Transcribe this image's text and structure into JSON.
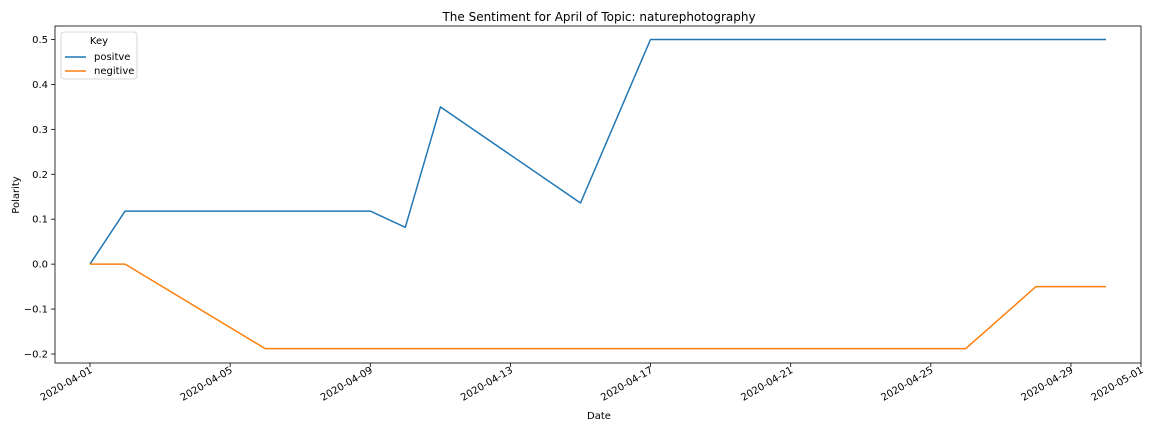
{
  "chart_data": {
    "type": "line",
    "title": "The Sentiment for April of Topic: naturephotography",
    "xlabel": "Date",
    "ylabel": "Polarity",
    "x_type": "date",
    "xlim": [
      "2020-03-31",
      "2020-05-01"
    ],
    "ylim": [
      -0.22,
      0.53
    ],
    "x_ticks": [
      "2020-04-01",
      "2020-04-05",
      "2020-04-09",
      "2020-04-13",
      "2020-04-17",
      "2020-04-21",
      "2020-04-25",
      "2020-04-29",
      "2020-05-01"
    ],
    "y_ticks": [
      -0.2,
      -0.1,
      0.0,
      0.1,
      0.2,
      0.3,
      0.4,
      0.5
    ],
    "grid": false,
    "legend": {
      "title": "Key",
      "placement": "top-left"
    },
    "series": [
      {
        "name": "positve",
        "color": "#1f77b4",
        "points": [
          [
            "2020-04-01",
            0.0
          ],
          [
            "2020-04-02",
            0.118
          ],
          [
            "2020-04-09",
            0.118
          ],
          [
            "2020-04-10",
            0.082
          ],
          [
            "2020-04-11",
            0.35
          ],
          [
            "2020-04-15",
            0.136
          ],
          [
            "2020-04-17",
            0.5
          ],
          [
            "2020-04-30",
            0.5
          ]
        ]
      },
      {
        "name": "negitive",
        "color": "#ff7f0e",
        "points": [
          [
            "2020-04-01",
            0.0
          ],
          [
            "2020-04-02",
            0.0
          ],
          [
            "2020-04-06",
            -0.188
          ],
          [
            "2020-04-26",
            -0.188
          ],
          [
            "2020-04-28",
            -0.05
          ],
          [
            "2020-04-30",
            -0.05
          ]
        ]
      }
    ]
  }
}
